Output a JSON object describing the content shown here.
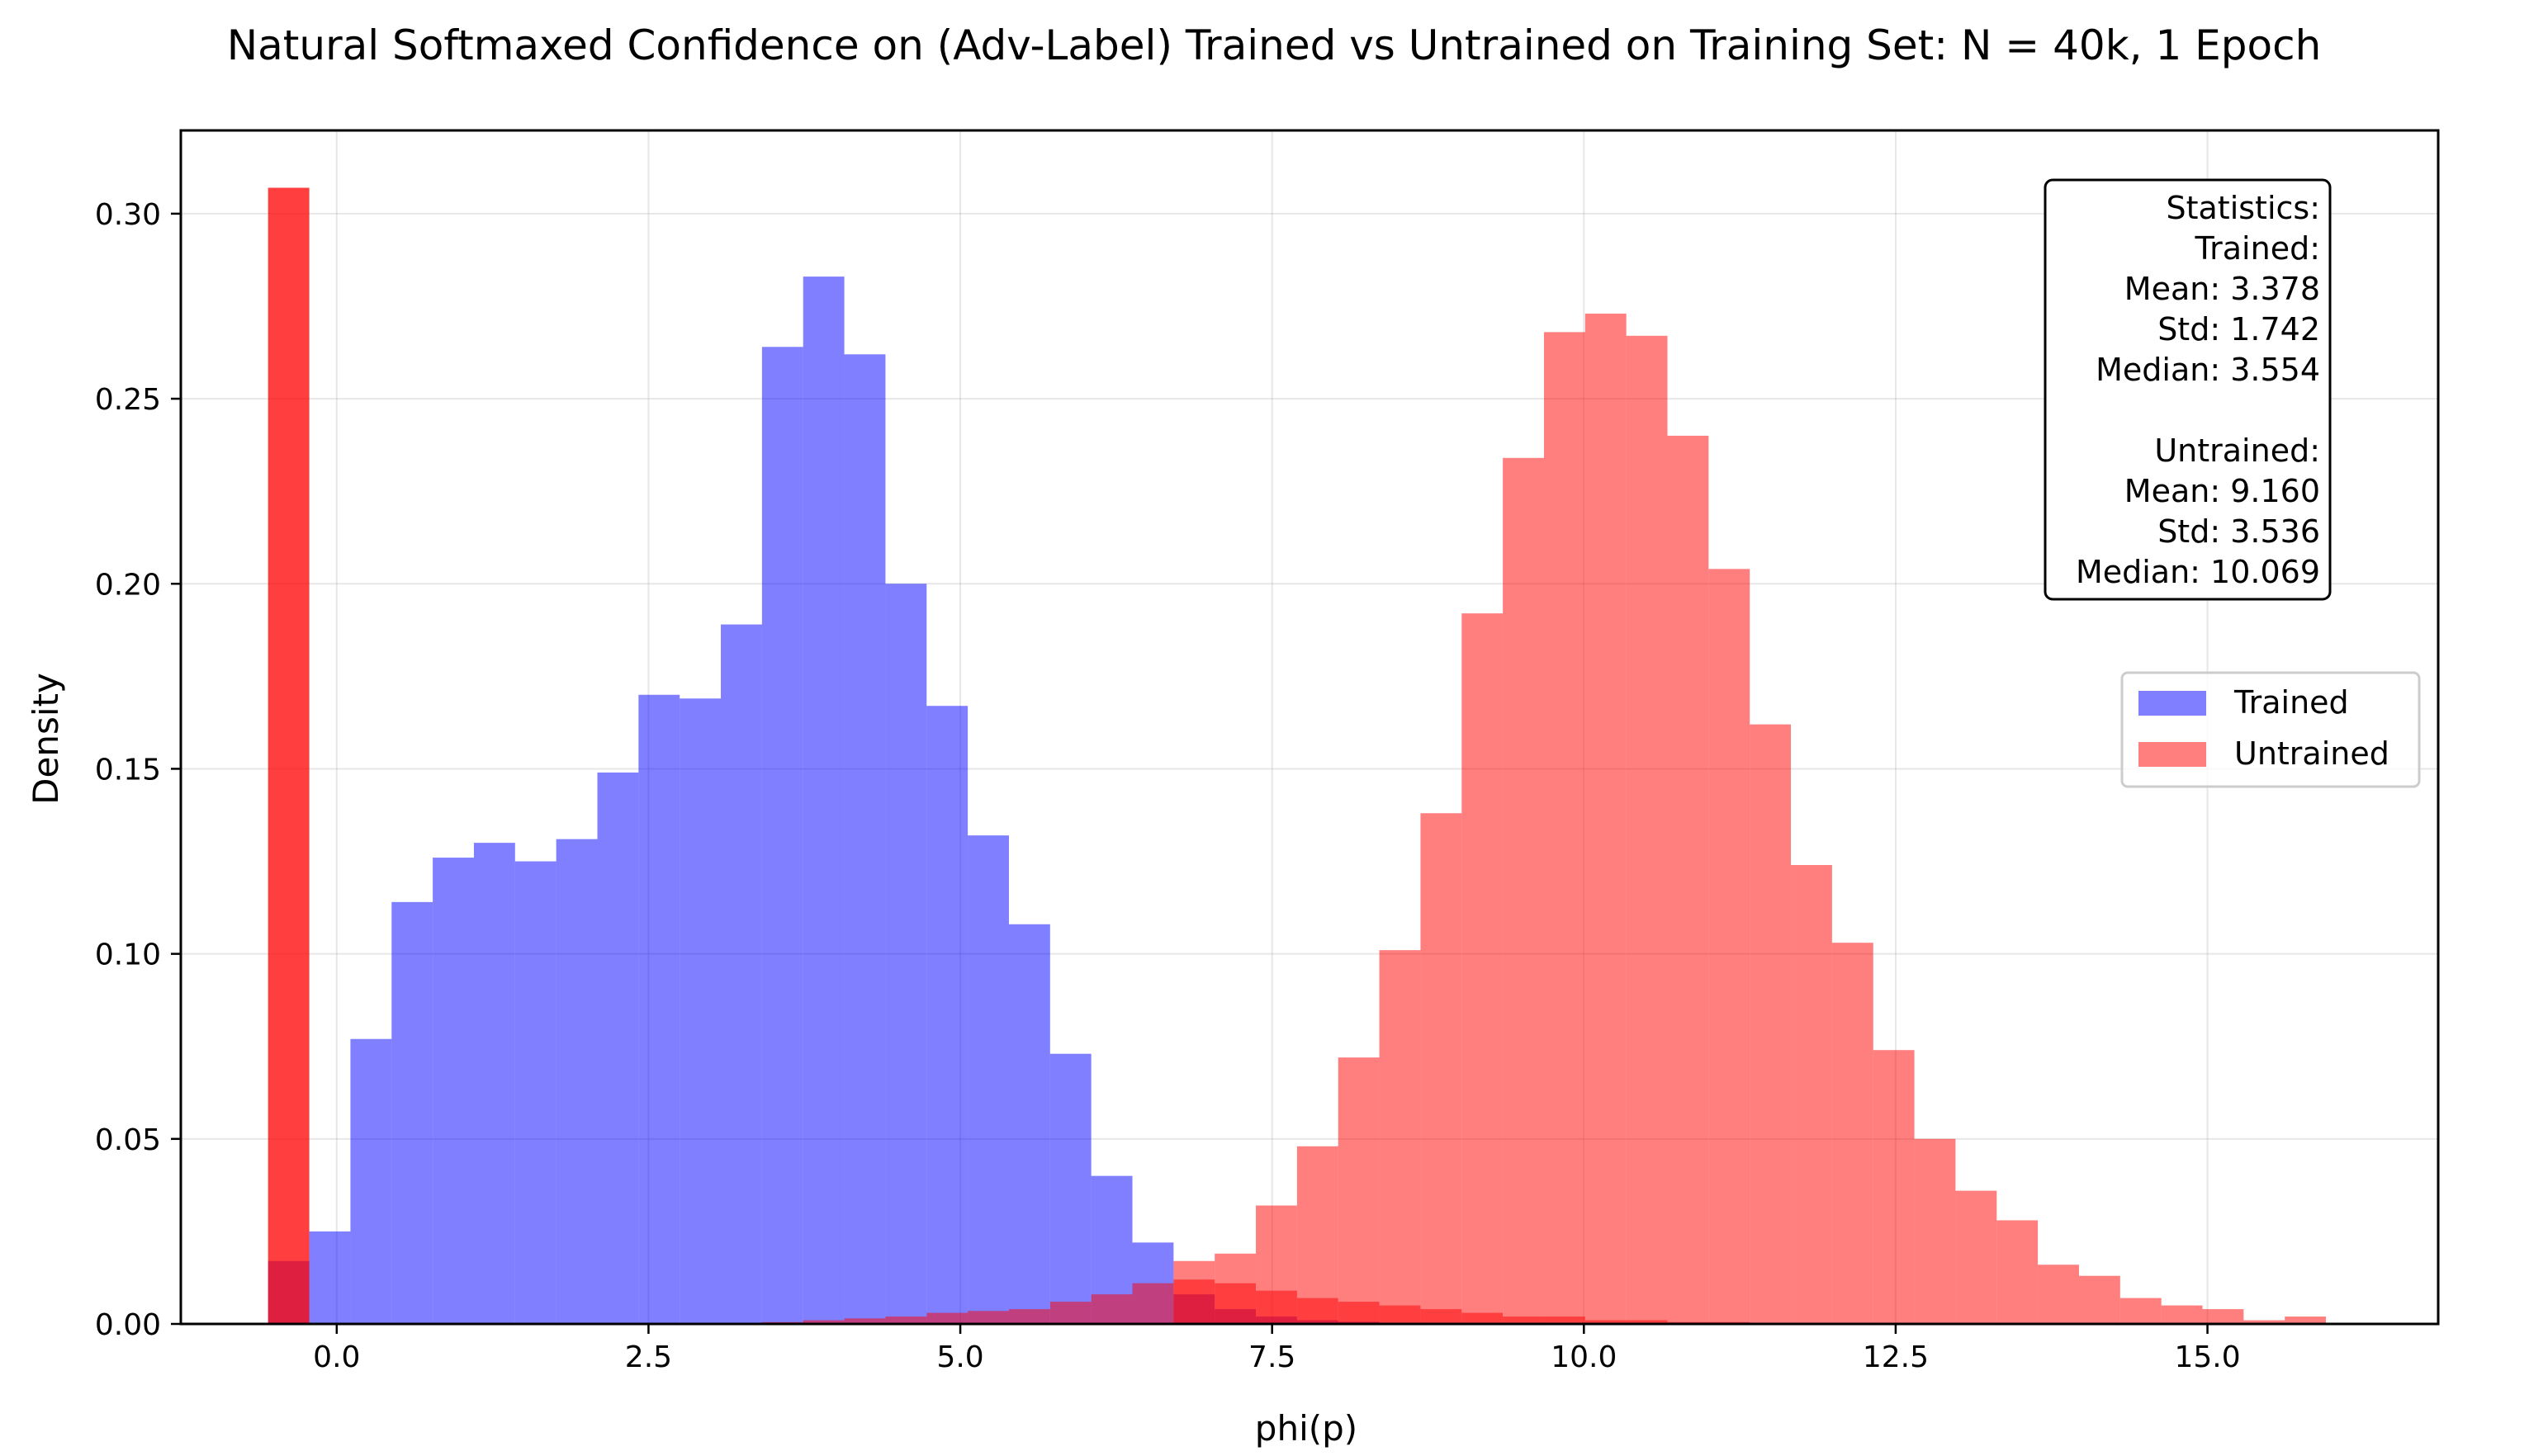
{
  "chart_data": {
    "type": "bar",
    "title": "Natural Softmaxed Confidence on (Adv-Label) Trained vs Untrained on Training Set: N = 40k, 1 Epoch",
    "xlabel": "phi(p)",
    "ylabel": "Density",
    "xlim": [
      -1.25,
      16.85
    ],
    "ylim": [
      0.0,
      0.3225
    ],
    "x_ticks": [
      0.0,
      2.5,
      5.0,
      7.5,
      10.0,
      12.5,
      15.0
    ],
    "x_tick_labels": [
      "0.0",
      "2.5",
      "5.0",
      "7.5",
      "10.0",
      "12.5",
      "15.0"
    ],
    "y_ticks": [
      0.0,
      0.05,
      0.1,
      0.15,
      0.2,
      0.25,
      0.3
    ],
    "y_tick_labels": [
      "0.00",
      "0.05",
      "0.10",
      "0.15",
      "0.20",
      "0.25",
      "0.30"
    ],
    "grid": true,
    "legend_position": "center-right",
    "series": [
      {
        "name": "Trained",
        "color": "#0000ff",
        "alpha": 0.5,
        "bin_start": -0.55,
        "bin_width": 0.33,
        "values": [
          0.017,
          0.025,
          0.077,
          0.114,
          0.126,
          0.13,
          0.125,
          0.131,
          0.149,
          0.17,
          0.169,
          0.189,
          0.264,
          0.283,
          0.262,
          0.2,
          0.167,
          0.132,
          0.108,
          0.073,
          0.04,
          0.022,
          0.008,
          0.004,
          0.002,
          0.001,
          0.0006,
          0.0003
        ]
      },
      {
        "name": "Untrained",
        "color": "#ff0000",
        "alpha": 0.5,
        "bin_start": -0.55,
        "bin_width": 0.33,
        "values": [
          0.307,
          0.0,
          0.0,
          0.0,
          0.0,
          0.0,
          0.0,
          0.0,
          0.0,
          0.0,
          0.0,
          0.0,
          0.0005,
          0.001,
          0.0015,
          0.002,
          0.003,
          0.0035,
          0.004,
          0.006,
          0.008,
          0.011,
          0.012,
          0.011,
          0.009,
          0.007,
          0.006,
          0.005,
          0.004,
          0.003,
          0.002,
          0.002,
          0.001,
          0.001,
          0.0005,
          0.0005,
          0.0003,
          0.0002,
          0.0,
          0.0,
          0.0,
          0.0,
          0.0,
          0.0,
          0.0,
          0.0,
          0.0,
          0.0,
          0.0,
          0.0
        ],
        "overlay_values": [
          0.307,
          0.0,
          0.0,
          0.0,
          0.0,
          0.0,
          0.0,
          0.0,
          0.0,
          0.0,
          0.0,
          0.0,
          0.0,
          0.0,
          0.0,
          0.0,
          0.0,
          0.0,
          0.0,
          0.0,
          0.0,
          0.0,
          0.017,
          0.019,
          0.032,
          0.048,
          0.072,
          0.101,
          0.138,
          0.192,
          0.234,
          0.268,
          0.273,
          0.267,
          0.24,
          0.204,
          0.162,
          0.124,
          0.103,
          0.074,
          0.05,
          0.036,
          0.028,
          0.016,
          0.013,
          0.007,
          0.005,
          0.004,
          0.001,
          0.002
        ]
      }
    ],
    "stats_box": {
      "lines": [
        "Statistics:",
        "Trained:",
        "Mean: 3.378",
        "Std: 1.742",
        "Median: 3.554",
        "",
        "Untrained:",
        "Mean: 9.160",
        "Std: 3.536",
        "Median: 10.069"
      ]
    }
  }
}
